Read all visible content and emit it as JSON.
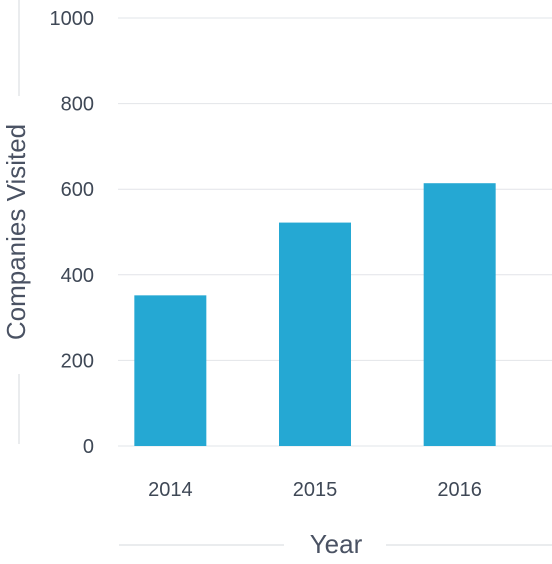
{
  "chart_data": {
    "type": "bar",
    "title": "",
    "xlabel": "Year",
    "ylabel": "Companies Visited",
    "categories": [
      "2014",
      "2015",
      "2016"
    ],
    "series": [
      {
        "values": [
          352,
          522,
          614
        ]
      }
    ],
    "ylim": [
      0,
      1000
    ],
    "yticks": [
      0,
      200,
      400,
      600,
      800,
      1000
    ],
    "grid": true,
    "legend": "none",
    "colors": {
      "bar": "#25a8d3",
      "grid": "#e2e4e8",
      "axis_title_divider": "#d6d9de",
      "text": "#3f4856"
    }
  }
}
